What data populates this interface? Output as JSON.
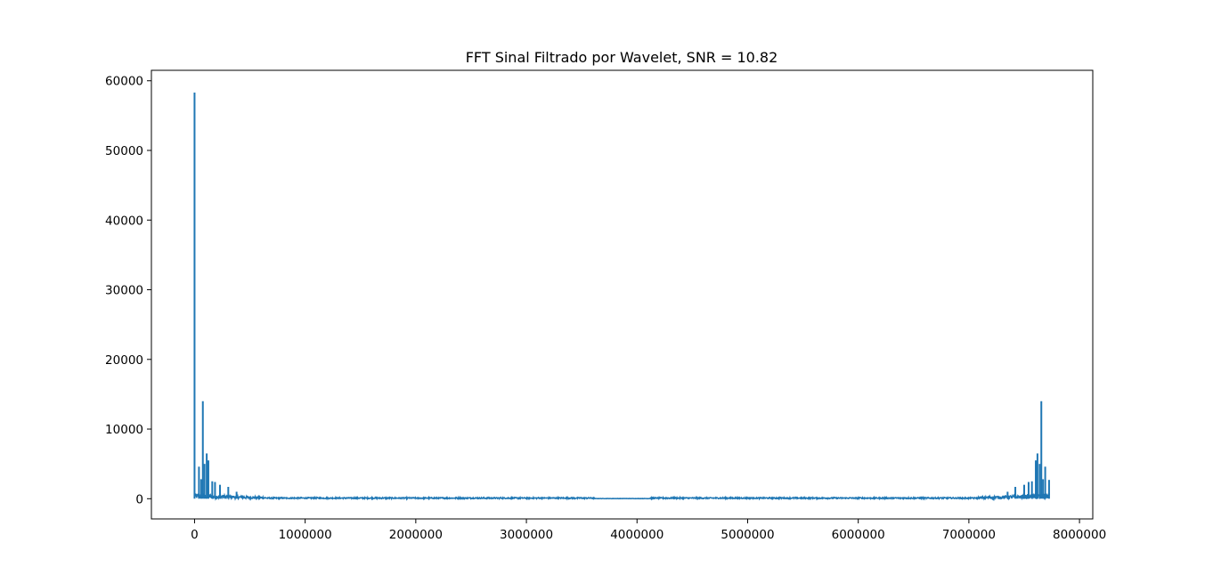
{
  "chart_data": {
    "type": "line",
    "title": "FFT Sinal Filtrado por Wavelet, SNR = 10.82",
    "xlabel": "",
    "ylabel": "",
    "xlim": [
      -390000,
      8120000
    ],
    "ylim": [
      -2900,
      61500
    ],
    "x_ticks": [
      0,
      1000000,
      2000000,
      3000000,
      4000000,
      5000000,
      6000000,
      7000000,
      8000000
    ],
    "x_tick_labels": [
      "0",
      "1000000",
      "2000000",
      "3000000",
      "4000000",
      "5000000",
      "6000000",
      "7000000",
      "8000000"
    ],
    "y_ticks": [
      0,
      10000,
      20000,
      30000,
      40000,
      50000,
      60000
    ],
    "y_tick_labels": [
      "0",
      "10000",
      "20000",
      "30000",
      "40000",
      "50000",
      "60000"
    ],
    "grid": false,
    "legend": "none",
    "series": [
      {
        "color": "#1f77b4",
        "x_max": 7730000,
        "peaks": [
          {
            "x": 0,
            "y": 58300
          },
          {
            "x": 40000,
            "y": 4600
          },
          {
            "x": 60000,
            "y": 2800
          },
          {
            "x": 75000,
            "y": 14000
          },
          {
            "x": 90000,
            "y": 5000
          },
          {
            "x": 110000,
            "y": 6500
          },
          {
            "x": 125000,
            "y": 5500
          },
          {
            "x": 160000,
            "y": 2500
          },
          {
            "x": 185000,
            "y": 2400
          },
          {
            "x": 230000,
            "y": 2000
          },
          {
            "x": 305000,
            "y": 1700
          },
          {
            "x": 380000,
            "y": 1000
          },
          {
            "x": 7350000,
            "y": 1000
          },
          {
            "x": 7420000,
            "y": 1700
          },
          {
            "x": 7500000,
            "y": 2000
          },
          {
            "x": 7540000,
            "y": 2400
          },
          {
            "x": 7570000,
            "y": 2500
          },
          {
            "x": 7605000,
            "y": 5500
          },
          {
            "x": 7620000,
            "y": 6500
          },
          {
            "x": 7640000,
            "y": 5000
          },
          {
            "x": 7655000,
            "y": 14000
          },
          {
            "x": 7670000,
            "y": 2800
          },
          {
            "x": 7690000,
            "y": 4600
          },
          {
            "x": 7725000,
            "y": 2700
          }
        ]
      }
    ]
  }
}
